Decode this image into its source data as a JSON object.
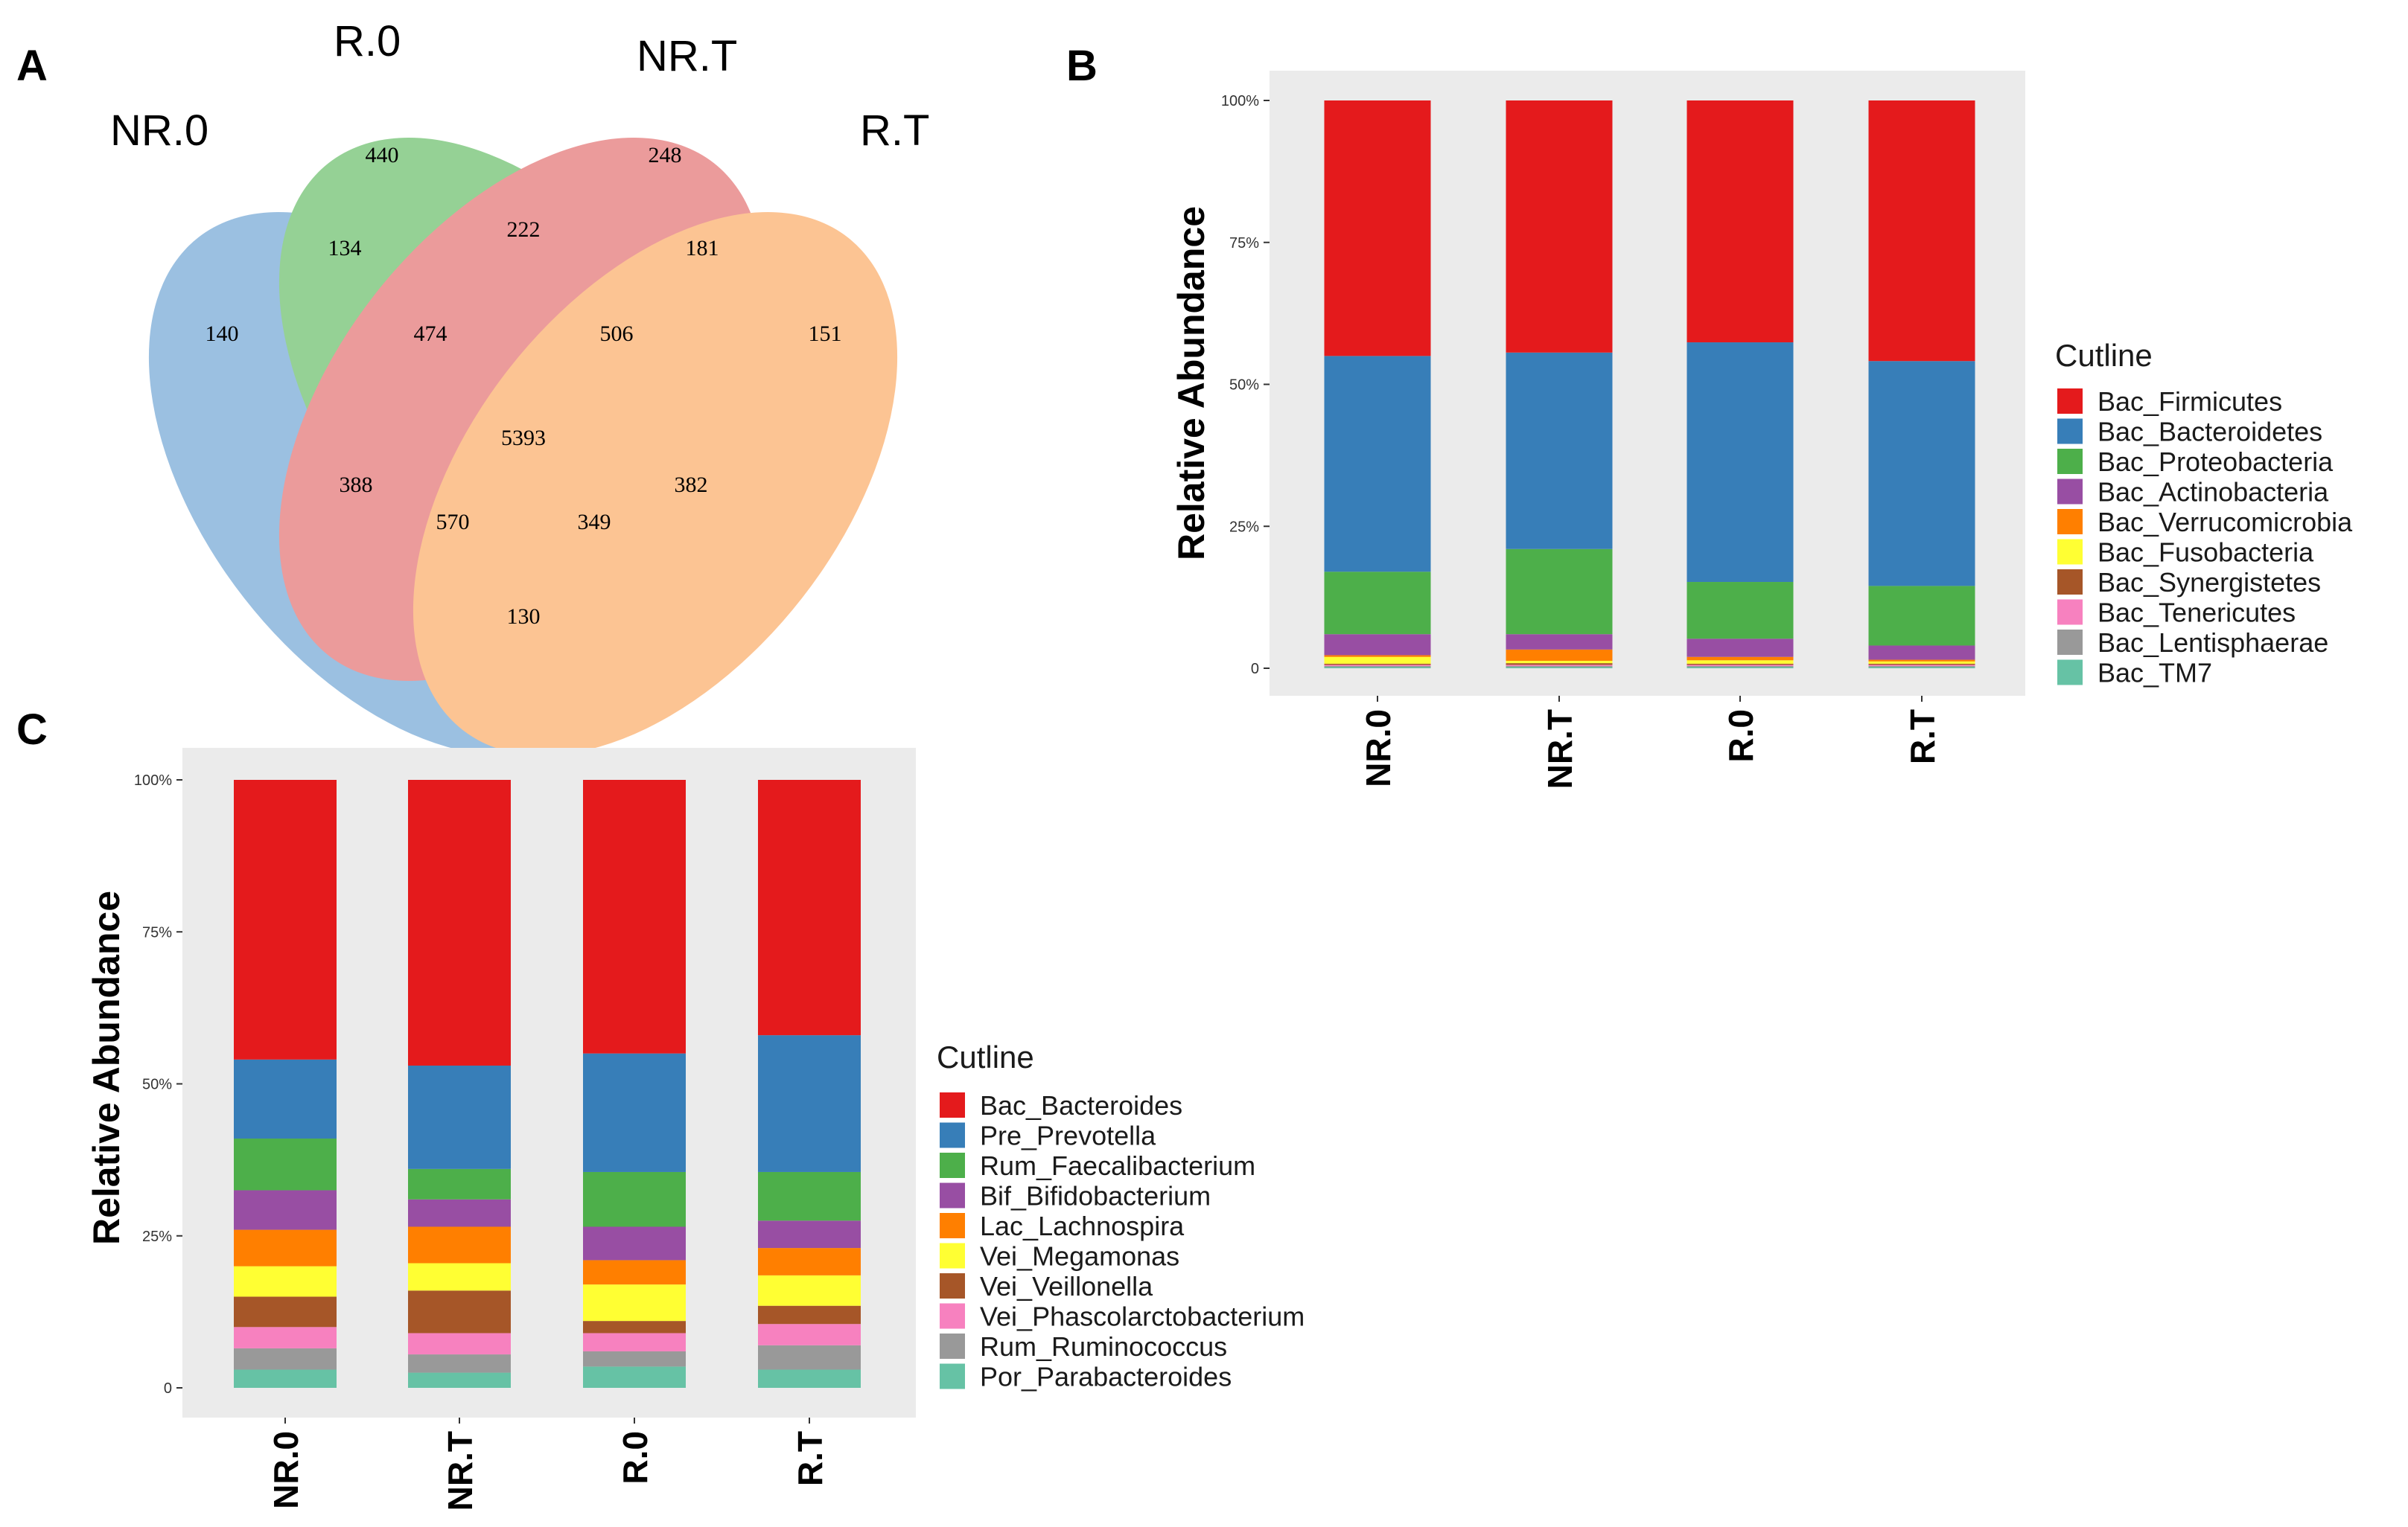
{
  "panel_labels": {
    "a": "A",
    "b": "B",
    "c": "C"
  },
  "venn": {
    "sets": [
      {
        "name": "NR.0",
        "color": "#3a82c4"
      },
      {
        "name": "R.0",
        "color": "#2ea52e"
      },
      {
        "name": "NR.T",
        "color": "#d93a3a"
      },
      {
        "name": "R.T",
        "color": "#fb8a2a"
      }
    ],
    "regions": [
      {
        "sets": "NR.0",
        "value": "140"
      },
      {
        "sets": "R.0",
        "value": "440"
      },
      {
        "sets": "NR.T",
        "value": "248"
      },
      {
        "sets": "R.T",
        "value": "151"
      },
      {
        "sets": "NR.0&R.0",
        "value": "134"
      },
      {
        "sets": "R.0&NR.T",
        "value": "222"
      },
      {
        "sets": "NR.T&R.T",
        "value": "181"
      },
      {
        "sets": "NR.0&R.0&NR.T",
        "value": "474"
      },
      {
        "sets": "R.0&NR.T&R.T",
        "value": "506"
      },
      {
        "sets": "NR.0&R.0&NR.T&R.T",
        "value": "5393"
      },
      {
        "sets": "NR.0&NR.T",
        "value": "388"
      },
      {
        "sets": "R.0&R.T",
        "value": "382"
      },
      {
        "sets": "NR.0&NR.T&R.T",
        "value": "570"
      },
      {
        "sets": "NR.0&R.0&R.T",
        "value": "349"
      },
      {
        "sets": "NR.0&R.T",
        "value": "130"
      }
    ]
  },
  "chart_data": [
    {
      "type": "bar",
      "stacked": true,
      "title": "",
      "xlabel": "",
      "ylabel": "Relative  Abundance",
      "ylim": [
        0,
        100
      ],
      "yticks": [
        0,
        25,
        50,
        75,
        100
      ],
      "ytick_labels": [
        "0",
        "25%",
        "50%",
        "75%",
        "100%"
      ],
      "categories": [
        "NR.0",
        "NR.T",
        "R.0",
        "R.T"
      ],
      "legend_title": "Cutline",
      "series": [
        {
          "name": "Bac_TM7",
          "color": "#66c2a5",
          "values": [
            0.2,
            0.2,
            0.2,
            0.2
          ]
        },
        {
          "name": "Bac_Lentisphaerae",
          "color": "#999999",
          "values": [
            0.2,
            0.2,
            0.2,
            0.2
          ]
        },
        {
          "name": "Bac_Tenericutes",
          "color": "#f781bf",
          "values": [
            0.2,
            0.2,
            0.2,
            0.2
          ]
        },
        {
          "name": "Bac_Synergistetes",
          "color": "#a65628",
          "values": [
            0.2,
            0.3,
            0.2,
            0.2
          ]
        },
        {
          "name": "Bac_Fusobacteria",
          "color": "#ffff33",
          "values": [
            1.2,
            0.4,
            0.6,
            0.4
          ]
        },
        {
          "name": "Bac_Verrucomicrobia",
          "color": "#ff7f00",
          "values": [
            0.3,
            2.0,
            0.6,
            0.3
          ]
        },
        {
          "name": "Bac_Actinobacteria",
          "color": "#984ea3",
          "values": [
            3.7,
            2.7,
            3.2,
            2.5
          ]
        },
        {
          "name": "Bac_Proteobacteria",
          "color": "#4daf4a",
          "values": [
            11.0,
            15.0,
            10.0,
            10.5
          ]
        },
        {
          "name": "Bac_Bacteroidetes",
          "color": "#377eb8",
          "values": [
            38.0,
            34.6,
            42.2,
            39.6
          ]
        },
        {
          "name": "Bac_Firmicutes",
          "color": "#e41a1c",
          "values": [
            45.0,
            44.4,
            42.6,
            45.9
          ]
        }
      ]
    },
    {
      "type": "bar",
      "stacked": true,
      "title": "",
      "xlabel": "",
      "ylabel": "Relative  Abundance",
      "ylim": [
        0,
        100
      ],
      "yticks": [
        0,
        25,
        50,
        75,
        100
      ],
      "ytick_labels": [
        "0",
        "25%",
        "50%",
        "75%",
        "100%"
      ],
      "categories": [
        "NR.0",
        "NR.T",
        "R.0",
        "R.T"
      ],
      "legend_title": "Cutline",
      "series": [
        {
          "name": "Por_Parabacteroides",
          "color": "#66c2a5",
          "values": [
            3.0,
            2.5,
            3.5,
            3.0
          ]
        },
        {
          "name": "Rum_Ruminococcus",
          "color": "#999999",
          "values": [
            3.5,
            3.0,
            2.5,
            4.0
          ]
        },
        {
          "name": "Vei_Phascolarctobacterium",
          "color": "#f781bf",
          "values": [
            3.5,
            3.5,
            3.0,
            3.5
          ]
        },
        {
          "name": "Vei_Veillonella",
          "color": "#a65628",
          "values": [
            5.0,
            7.0,
            2.0,
            3.0
          ]
        },
        {
          "name": "Vei_Megamonas",
          "color": "#ffff33",
          "values": [
            5.0,
            4.5,
            6.0,
            5.0
          ]
        },
        {
          "name": "Lac_Lachnospira",
          "color": "#ff7f00",
          "values": [
            6.0,
            6.0,
            4.0,
            4.5
          ]
        },
        {
          "name": "Bif_Bifidobacterium",
          "color": "#984ea3",
          "values": [
            6.5,
            4.5,
            5.5,
            4.5
          ]
        },
        {
          "name": "Rum_Faecalibacterium",
          "color": "#4daf4a",
          "values": [
            8.5,
            5.0,
            9.0,
            8.0
          ]
        },
        {
          "name": "Pre_Prevotella",
          "color": "#377eb8",
          "values": [
            13.0,
            17.0,
            19.5,
            22.5
          ]
        },
        {
          "name": "Bac_Bacteroides",
          "color": "#e41a1c",
          "values": [
            46.0,
            47.0,
            45.0,
            42.0
          ]
        }
      ]
    }
  ]
}
